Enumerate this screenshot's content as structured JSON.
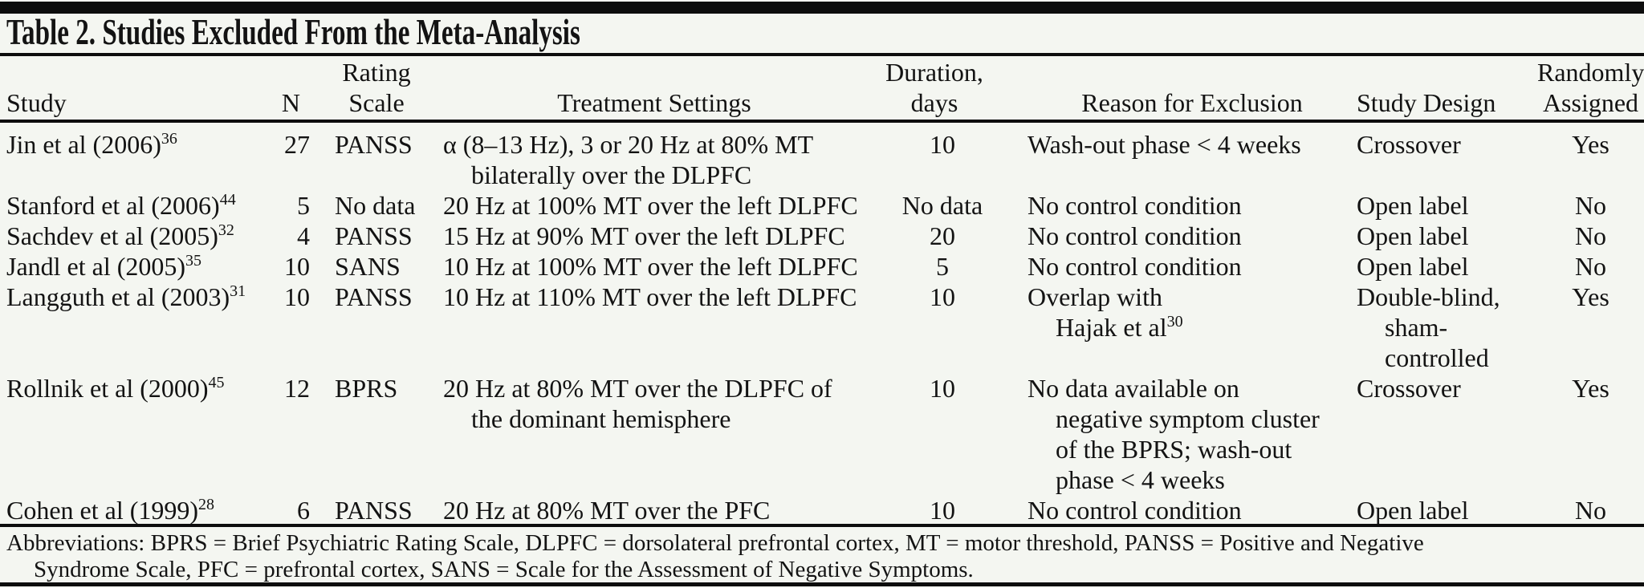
{
  "title": "Table 2. Studies Excluded From the Meta-Analysis",
  "colors": {
    "background": "#f4f6f1",
    "ink": "#131313"
  },
  "table": {
    "headers": {
      "study": "Study",
      "n": "N",
      "rating_scale": "Rating\nScale",
      "treatment_settings": "Treatment Settings",
      "duration_days": "Duration,\ndays",
      "reason_for_exclusion": "Reason for Exclusion",
      "study_design": "Study Design",
      "randomly_assigned": "Randomly\nAssigned"
    },
    "rows": [
      {
        "study": "Jin et al (2006)",
        "ref": "36",
        "n": "27",
        "rating": "PANSS",
        "treatment": "α (8–13 Hz), 3 or 20 Hz at 80% MT\nbilaterally over the DLPFC",
        "duration": "10",
        "reason": "Wash-out phase < 4 weeks",
        "reason_sup": "",
        "design": "Crossover",
        "random": "Yes"
      },
      {
        "study": "Stanford et al (2006)",
        "ref": "44",
        "n": "5",
        "rating": "No data",
        "treatment": "20 Hz at 100% MT over the left DLPFC",
        "duration": "No data",
        "reason": "No control condition",
        "reason_sup": "",
        "design": "Open label",
        "random": "No"
      },
      {
        "study": "Sachdev et al (2005)",
        "ref": "32",
        "n": "4",
        "rating": "PANSS",
        "treatment": "15 Hz at 90% MT over the left DLPFC",
        "duration": "20",
        "reason": "No control condition",
        "reason_sup": "",
        "design": "Open label",
        "random": "No"
      },
      {
        "study": "Jandl et al (2005)",
        "ref": "35",
        "n": "10",
        "rating": "SANS",
        "treatment": "10 Hz at 100% MT over the left DLPFC",
        "duration": "5",
        "reason": "No control condition",
        "reason_sup": "",
        "design": "Open label",
        "random": "No"
      },
      {
        "study": "Langguth et al (2003)",
        "ref": "31",
        "n": "10",
        "rating": "PANSS",
        "treatment": "10 Hz at 110% MT over the left DLPFC",
        "duration": "10",
        "reason": "Overlap with\nHajak et al",
        "reason_sup": "30",
        "design": "Double-blind,\nsham-\ncontrolled",
        "random": "Yes"
      },
      {
        "study": "Rollnik et al (2000)",
        "ref": "45",
        "n": "12",
        "rating": "BPRS",
        "treatment": "20 Hz at 80% MT over the DLPFC of\nthe dominant hemisphere",
        "duration": "10",
        "reason": "No data available on\nnegative symptom cluster\nof the BPRS; wash-out\nphase < 4 weeks",
        "reason_sup": "",
        "design": "Crossover",
        "random": "Yes"
      },
      {
        "study": "Cohen et al (1999)",
        "ref": "28",
        "n": "6",
        "rating": "PANSS",
        "treatment": "20 Hz at 80% MT over the PFC",
        "duration": "10",
        "reason": "No control condition",
        "reason_sup": "",
        "design": "Open label",
        "random": "No"
      }
    ]
  },
  "footnote": "Abbreviations: BPRS = Brief Psychiatric Rating Scale, DLPFC = dorsolateral prefrontal cortex, MT = motor threshold, PANSS = Positive and Negative\nSyndrome Scale, PFC = prefrontal cortex, SANS = Scale for the Assessment of Negative Symptoms."
}
